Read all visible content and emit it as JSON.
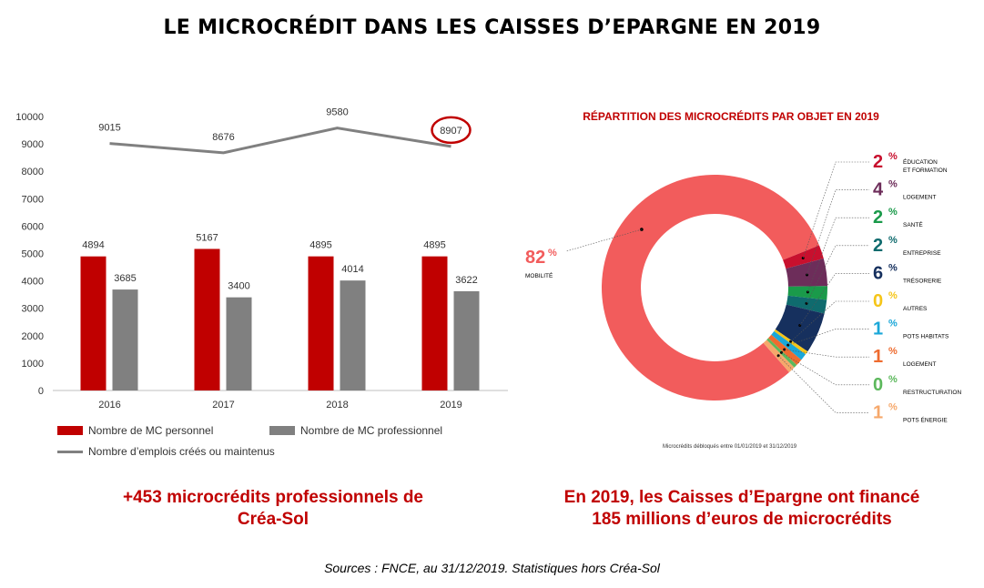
{
  "title": "LE MICROCRÉDIT DANS LES CAISSES D’EPARGNE EN 2019",
  "chart_data": [
    {
      "type": "bar",
      "categories": [
        "2016",
        "2017",
        "2018",
        "2019"
      ],
      "ylim": [
        0,
        10000
      ],
      "yticks": [
        0,
        1000,
        2000,
        3000,
        4000,
        5000,
        6000,
        7000,
        8000,
        9000,
        10000
      ],
      "series": [
        {
          "name": "Nombre de MC personnel",
          "type": "bar",
          "color": "#c00000",
          "values": [
            4894,
            5167,
            4895,
            4895
          ]
        },
        {
          "name": "Nombre de MC professionnel",
          "type": "bar",
          "color": "#808080",
          "values": [
            3685,
            3400,
            4014,
            3622
          ]
        },
        {
          "name": "Nombre d’emplois créés ou maintenus",
          "type": "line",
          "color": "#808080",
          "values": [
            9015,
            8676,
            9580,
            8907
          ]
        }
      ],
      "highlight": {
        "category": "2019",
        "series": "Nombre d’emplois créés ou maintenus",
        "color": "#c00000"
      },
      "grid": false,
      "legend_position": "bottom-left"
    },
    {
      "type": "pie",
      "title": "RÉPARTITION DES MICROCRÉDITS PAR OBJET EN 2019",
      "footnote": "Microcrédits débloqués entre 01/01/2019 et 31/12/2019",
      "donut": true,
      "slices": [
        {
          "value": "82",
          "unit": "%",
          "label": "MOBILITÉ",
          "color": "#f25c5c"
        },
        {
          "value": "2",
          "unit": "%",
          "label": "ÉDUCATION",
          "label2": "ET FORMATION",
          "color": "#c8102e"
        },
        {
          "value": "4",
          "unit": "%",
          "label": "LOGEMENT",
          "color": "#6d2d5a"
        },
        {
          "value": "2",
          "unit": "%",
          "label": "SANTÉ",
          "color": "#1a9a4a"
        },
        {
          "value": "2",
          "unit": "%",
          "label": "ENTREPRISE",
          "color": "#0f6b6e"
        },
        {
          "value": "6",
          "unit": "%",
          "label": "TRÉSORERIE",
          "color": "#16305e"
        },
        {
          "value": "0",
          "unit": "%",
          "label": "AUTRES",
          "color": "#f5c518"
        },
        {
          "value": "1",
          "unit": "%",
          "label": "POTS HABITATS",
          "color": "#1aa7d8"
        },
        {
          "value": "1",
          "unit": "%",
          "label": "LOGEMENT",
          "color": "#ee6b2f"
        },
        {
          "value": "0",
          "unit": "%",
          "label": "RESTRUCTURATION",
          "color": "#5cb85c"
        },
        {
          "value": "1",
          "unit": "%",
          "label": "POTS ÉNERGIE",
          "color": "#f6a86b"
        }
      ]
    }
  ],
  "callouts": {
    "left_line1": "+453 microcrédits professionnels de",
    "left_line2": "Créa-Sol",
    "right_line1": "En 2019, les Caisses d’Epargne ont financé",
    "right_line2": "185 millions d’euros de microcrédits"
  },
  "sources": "Sources : FNCE, au 31/12/2019. Statistiques hors Créa-Sol"
}
